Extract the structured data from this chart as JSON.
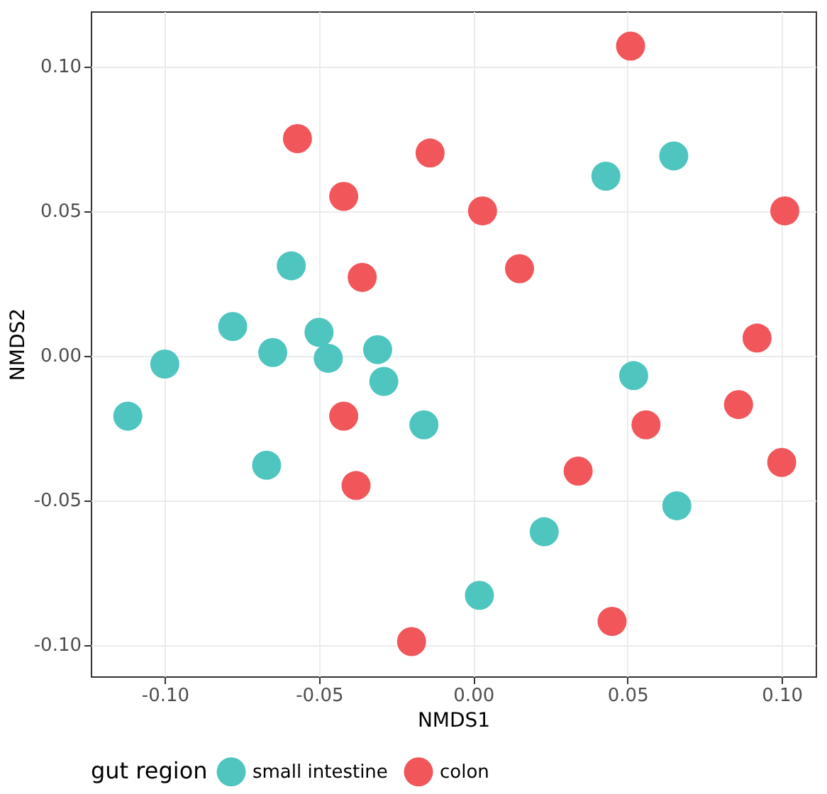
{
  "chart_data": {
    "type": "scatter",
    "xlabel": "NMDS1",
    "ylabel": "NMDS2",
    "legend_title": "gut region",
    "legend": "bottom",
    "grid": true,
    "marker": "circle",
    "xlim": [
      -0.124,
      0.111
    ],
    "ylim": [
      -0.111,
      0.119
    ],
    "xticks": [
      {
        "value": -0.1,
        "label": "-0.10"
      },
      {
        "value": -0.05,
        "label": "-0.05"
      },
      {
        "value": 0,
        "label": "0.00"
      },
      {
        "value": 0.05,
        "label": "0.05"
      },
      {
        "value": 0.1,
        "label": "0.10"
      }
    ],
    "yticks": [
      {
        "value": -0.1,
        "label": "-0.10"
      },
      {
        "value": -0.05,
        "label": "-0.05"
      },
      {
        "value": 0,
        "label": "0.00"
      },
      {
        "value": 0.05,
        "label": "0.05"
      },
      {
        "value": 0.1,
        "label": "0.10"
      }
    ],
    "series": [
      {
        "name": "small intestine",
        "color": "#4ec5bf",
        "x": [
          -0.112,
          -0.1,
          -0.078,
          -0.065,
          -0.059,
          -0.067,
          -0.05,
          -0.047,
          -0.031,
          -0.029,
          -0.016,
          0.002,
          0.023,
          0.043,
          0.065,
          0.052,
          0.066
        ],
        "values": [
          -0.021,
          -0.003,
          0.01,
          0.001,
          0.031,
          -0.038,
          0.008,
          -0.001,
          0.002,
          -0.009,
          -0.024,
          -0.083,
          -0.061,
          0.062,
          0.069,
          -0.007,
          -0.052
        ]
      },
      {
        "name": "colon",
        "color": "#f0565a",
        "x": [
          0.051,
          -0.057,
          -0.014,
          -0.042,
          0.003,
          -0.036,
          0.015,
          0.101,
          0.092,
          0.086,
          0.056,
          0.034,
          0.1,
          -0.042,
          -0.038,
          0.045,
          -0.02
        ],
        "values": [
          0.107,
          0.075,
          0.07,
          0.055,
          0.05,
          0.027,
          0.03,
          0.05,
          0.006,
          -0.017,
          -0.024,
          -0.04,
          -0.037,
          -0.021,
          -0.045,
          -0.092,
          -0.099
        ]
      }
    ]
  }
}
